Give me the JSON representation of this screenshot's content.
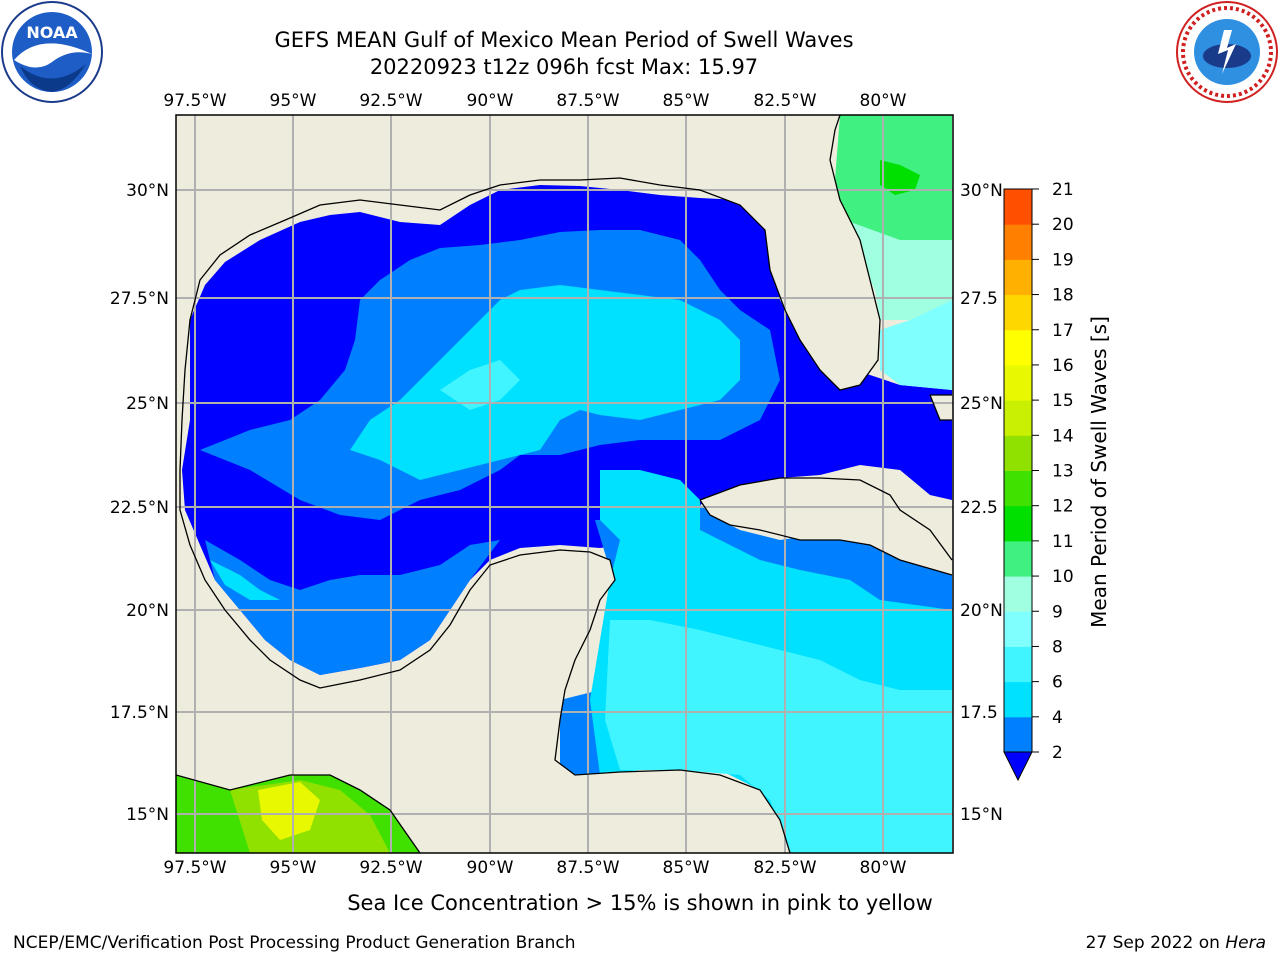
{
  "title": {
    "line1": "GEFS MEAN Gulf of Mexico Mean Period of Swell Waves",
    "line2": "20220923 t12z 096h fcst   Max: 15.97"
  },
  "lon_ticks": [
    "97.5°W",
    "95°W",
    "92.5°W",
    "90°W",
    "87.5°W",
    "85°W",
    "82.5°W",
    "80°W"
  ],
  "lat_ticks_left": [
    "30°N",
    "27.5°N",
    "25°N",
    "22.5°N",
    "20°N",
    "17.5°N",
    "15°N"
  ],
  "lat_ticks_right": [
    "30°N",
    "27.5",
    "25°N",
    "22.5",
    "20°N",
    "17.5",
    "15°N"
  ],
  "colorbar": {
    "label": "Mean Period of Swell Waves [s]",
    "ticks": [
      "2",
      "4",
      "6",
      "8",
      "9",
      "10",
      "11",
      "12",
      "13",
      "14",
      "15",
      "16",
      "17",
      "18",
      "19",
      "20",
      "21"
    ],
    "colors": [
      "#0080ff",
      "#00e0ff",
      "#40f5ff",
      "#80ffff",
      "#a0ffe0",
      "#40f080",
      "#00e000",
      "#40e000",
      "#90e000",
      "#c8f000",
      "#e8f800",
      "#ffff00",
      "#ffd700",
      "#ffb000",
      "#ff8000",
      "#ff5000",
      "#ff2000",
      "#ff0000"
    ],
    "underflow_color": "#0000ff"
  },
  "map_colors": {
    "land": "#eeecdc",
    "gridline": "#b0b0b0"
  },
  "note": "Sea Ice Concentration > 15% is shown in pink to yellow",
  "footer": {
    "left": "NCEP/EMC/Verification Post Processing Product Generation Branch",
    "right_date": "27 Sep 2022 on ",
    "right_host": "Hera"
  },
  "logos": {
    "noaa_text": "NOAA",
    "nws_text": "NATIONAL WEATHER SERVICE"
  }
}
